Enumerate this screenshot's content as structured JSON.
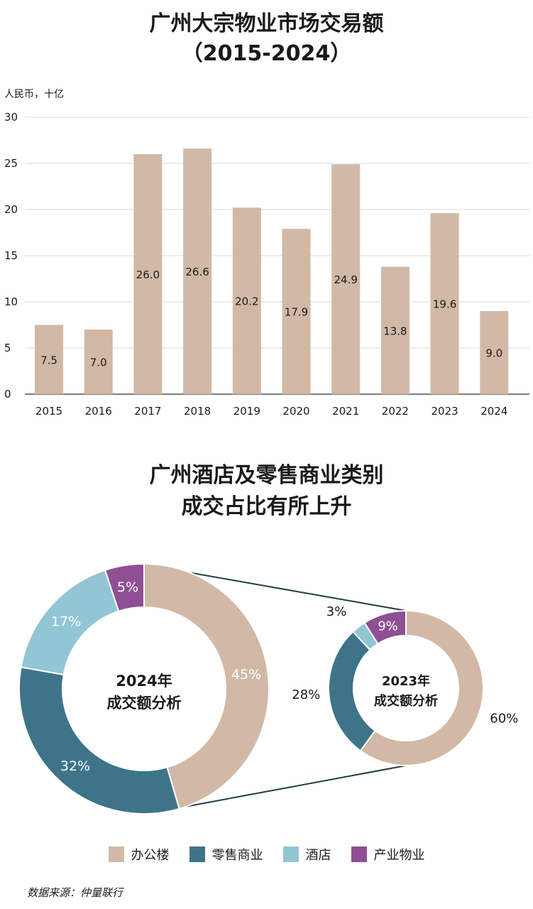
{
  "chart1": {
    "title_line1": "广州大宗物业市场交易额",
    "title_line2": "（2015-2024）",
    "unit_label": "人民币，十亿"
  },
  "chart2": {
    "title_line1": "广州酒店及零售商业类别",
    "title_line2": "成交占比有所上升"
  },
  "source": "数据来源：仲量联行",
  "colors": {
    "office": "#d1b9a6",
    "retail": "#3e7489",
    "hotel": "#92c6d5",
    "industrial": "#8f4f94",
    "bar": "#d1b9a6",
    "grid": "#d9d9d9",
    "axis": "#555555"
  },
  "chart_data": [
    {
      "type": "bar",
      "categories": [
        "2015",
        "2016",
        "2017",
        "2018",
        "2019",
        "2020",
        "2021",
        "2022",
        "2023",
        "2024"
      ],
      "values": [
        7.5,
        7.0,
        26.0,
        26.6,
        20.2,
        17.9,
        24.9,
        13.8,
        19.6,
        9.0
      ],
      "value_labels": [
        "7.5",
        "7.0",
        "26.0",
        "26.6",
        "20.2",
        "17.9",
        "24.9",
        "13.8",
        "19.6",
        "9.0"
      ],
      "ylabel": "人民币，十亿",
      "ylim": [
        0,
        30
      ],
      "yticks": [
        "0",
        "5",
        "10",
        "15",
        "20",
        "25",
        "30"
      ],
      "grid": true
    },
    {
      "type": "pie",
      "center_label_line1": "2024年",
      "center_label_line2": "成交额分析",
      "categories": [
        "办公楼",
        "零售商业",
        "酒店",
        "产业物业"
      ],
      "values": [
        45,
        32,
        17,
        5
      ],
      "value_labels": [
        "45%",
        "32%",
        "17%",
        "5%"
      ]
    },
    {
      "type": "pie",
      "center_label_line1": "2023年",
      "center_label_line2": "成交额分析",
      "categories": [
        "办公楼",
        "零售商业",
        "酒店",
        "产业物业"
      ],
      "values": [
        60,
        28,
        3,
        9
      ],
      "value_labels": [
        "60%",
        "28%",
        "3%",
        "9%"
      ]
    }
  ],
  "legend": [
    {
      "label": "办公楼",
      "color": "#d1b9a6"
    },
    {
      "label": "零售商业",
      "color": "#3e7489"
    },
    {
      "label": "酒店",
      "color": "#92c6d5"
    },
    {
      "label": "产业物业",
      "color": "#8f4f94"
    }
  ]
}
